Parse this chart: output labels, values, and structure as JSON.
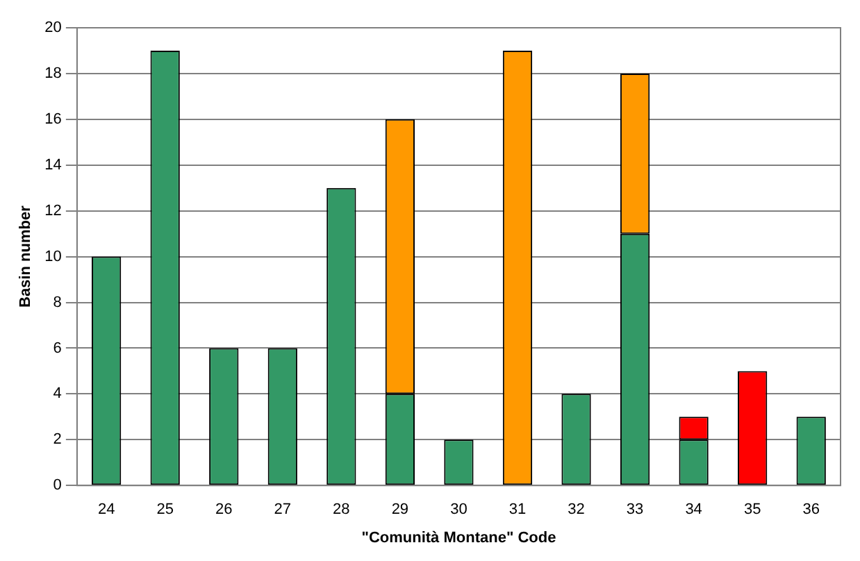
{
  "chart_data": {
    "type": "bar",
    "stacked": true,
    "xlabel": "\"Comunità Montane\" Code",
    "ylabel": "Basin number",
    "categories": [
      "24",
      "25",
      "26",
      "27",
      "28",
      "29",
      "30",
      "31",
      "32",
      "33",
      "34",
      "35",
      "36"
    ],
    "series": [
      {
        "color": "#339966",
        "values": [
          10,
          19,
          6,
          6,
          13,
          4,
          2,
          null,
          4,
          11,
          2,
          null,
          3
        ]
      },
      {
        "color": "#ff9900",
        "values": [
          null,
          null,
          null,
          null,
          null,
          12,
          null,
          19,
          null,
          7,
          null,
          null,
          null
        ]
      },
      {
        "color": "#ff0000",
        "values": [
          null,
          null,
          null,
          null,
          null,
          null,
          null,
          null,
          null,
          null,
          1,
          5,
          null
        ]
      }
    ],
    "ylim": [
      0,
      20
    ],
    "yticks": [
      0,
      2,
      4,
      6,
      8,
      10,
      12,
      14,
      16,
      18,
      20
    ],
    "grid": "y",
    "legend": false
  }
}
